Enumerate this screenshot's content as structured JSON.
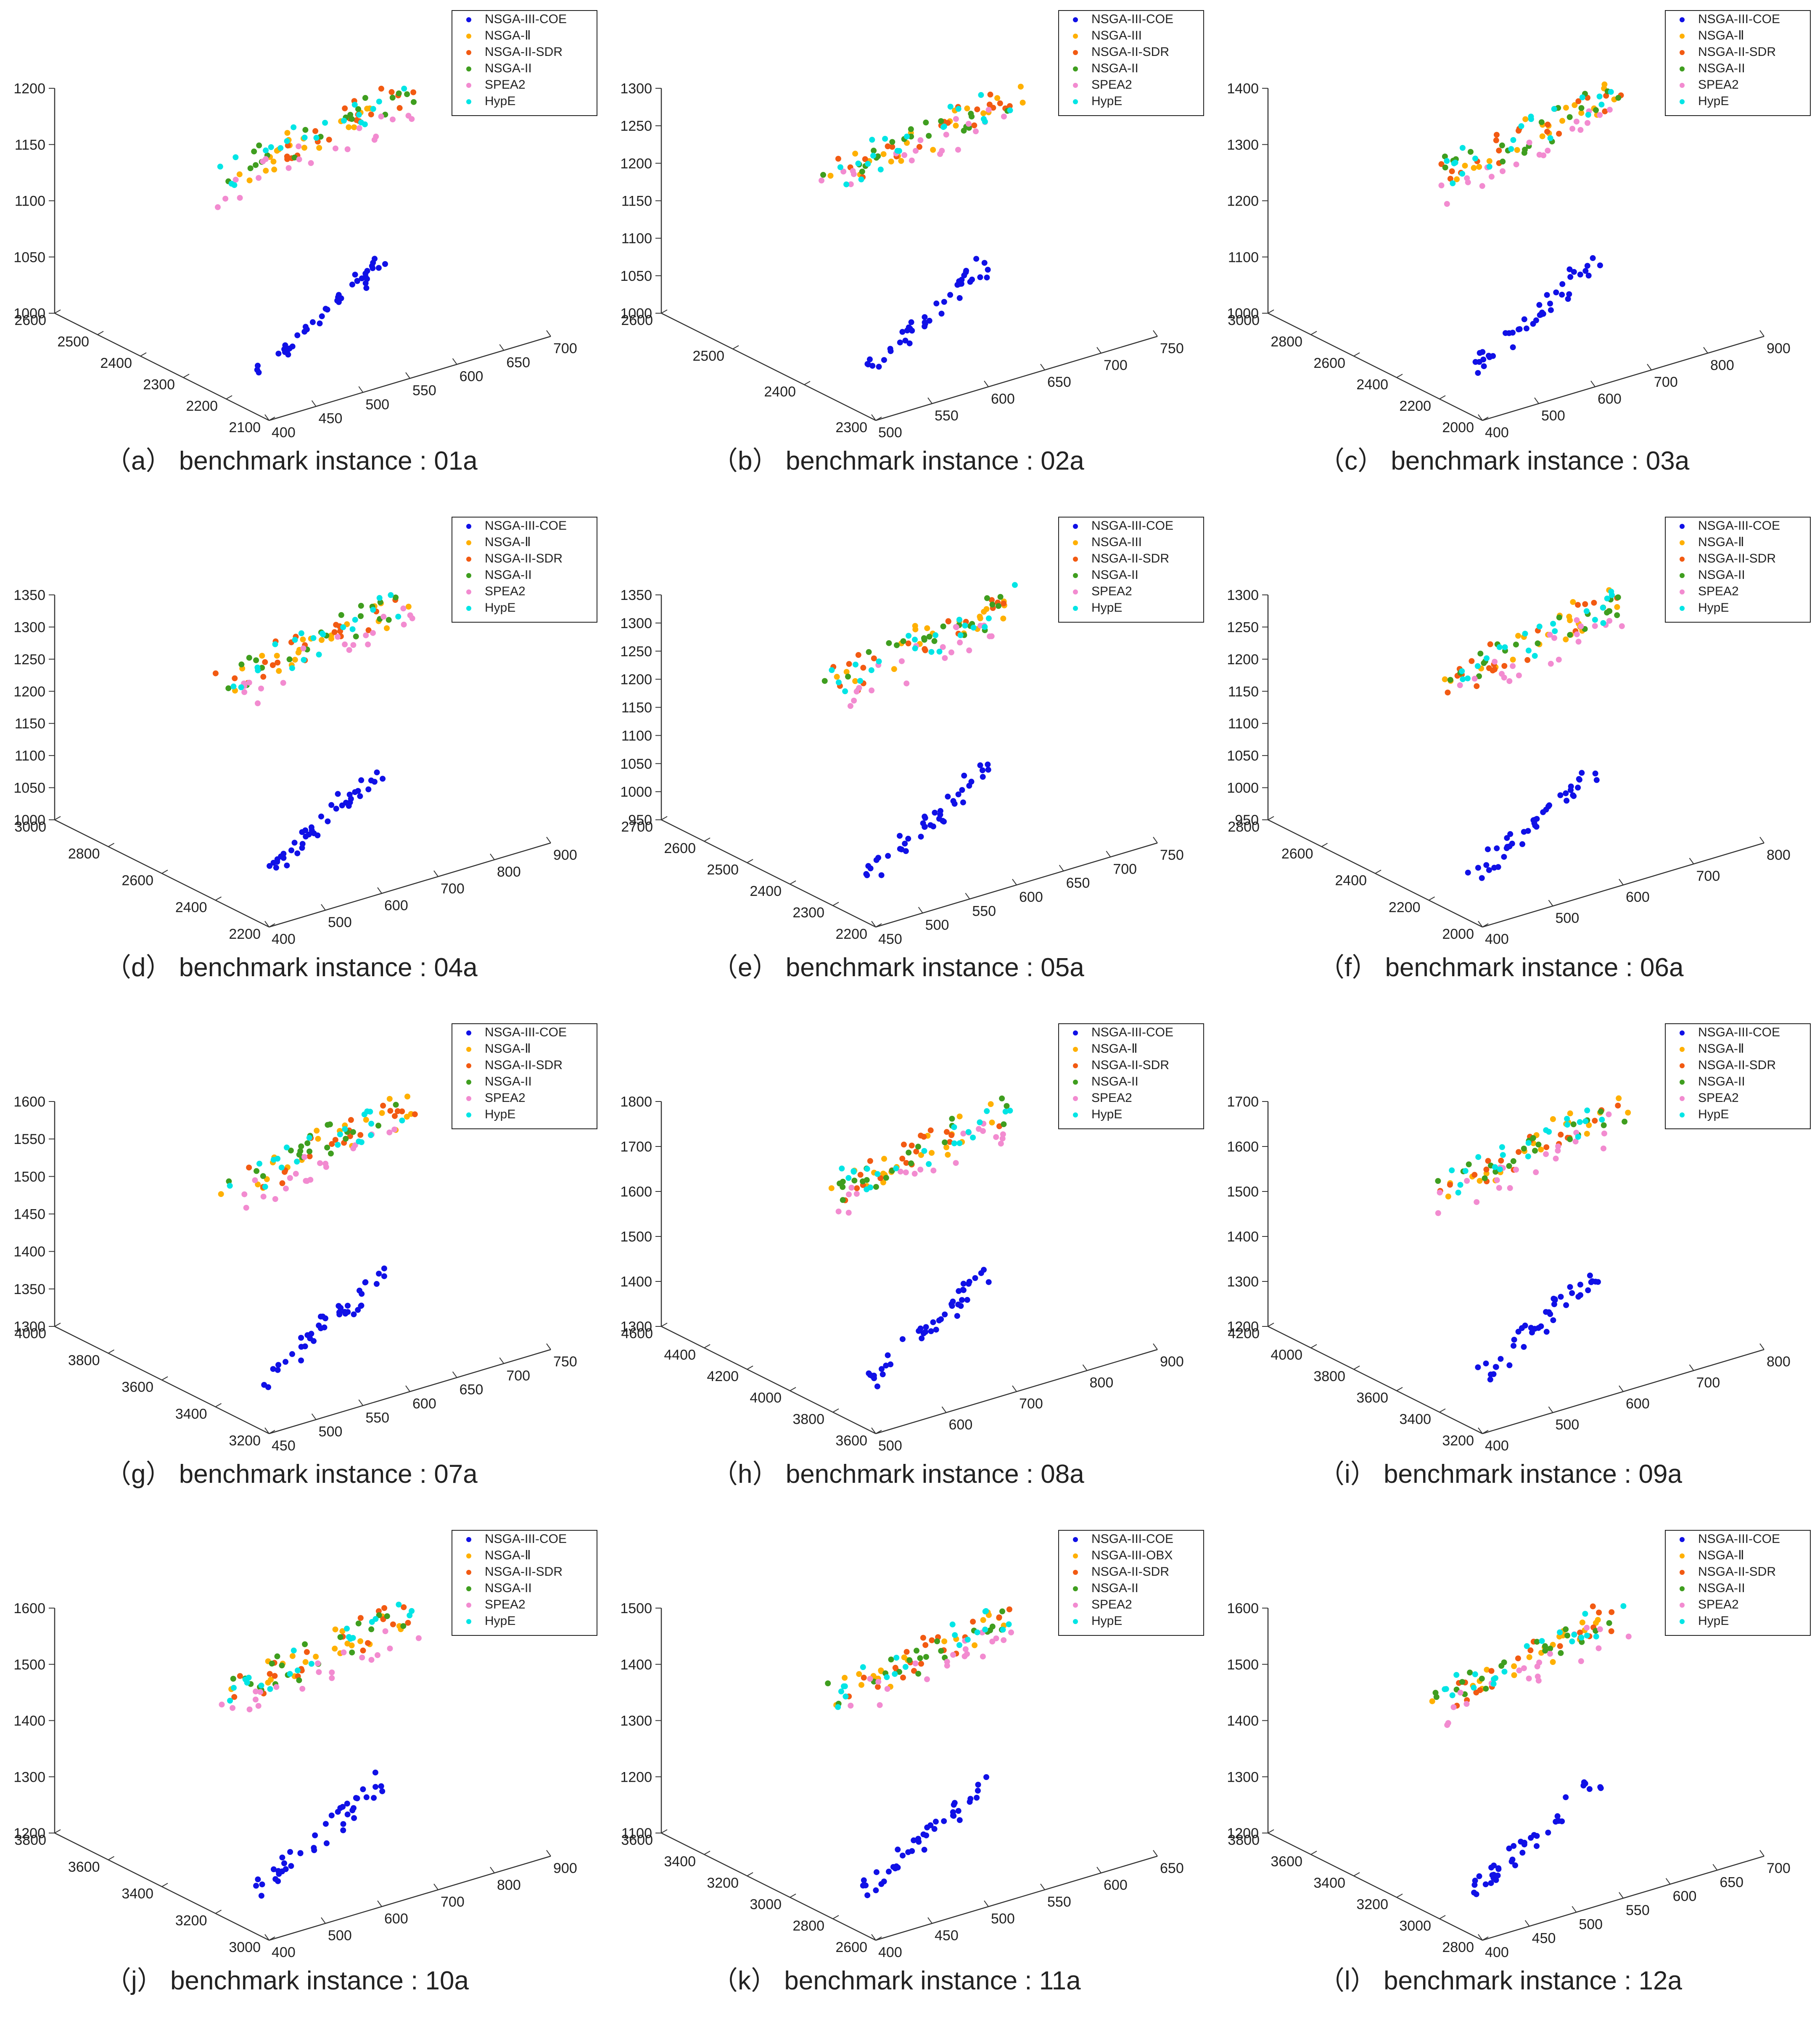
{
  "figure": {
    "series_colors": {
      "NSGA-III-COE": "#1010e6",
      "NSGA-Ⅱ": "#ffb000",
      "NSGA-III": "#ffb000",
      "NSGA-III-OBX": "#ffb000",
      "NSGA-II-SDR": "#f25a12",
      "NSGA-II": "#3f9e1f",
      "SPEA2": "#f28bd0",
      "HypE": "#00e5e5"
    }
  },
  "chart_data": [
    {
      "type": "scatter",
      "caption": "（a）  benchmark instance : 01a",
      "legend": [
        "NSGA-III-COE",
        "NSGA-Ⅱ",
        "NSGA-II-SDR",
        "NSGA-II",
        "SPEA2",
        "HypE"
      ],
      "zticks": [
        "1200",
        "1150",
        "1100",
        "1050",
        "1000"
      ],
      "yticks": [
        "2600",
        "2500",
        "2400",
        "2300",
        "2200",
        "2100"
      ],
      "xticks": [
        "400",
        "450",
        "500",
        "550",
        "600",
        "650",
        "700"
      ],
      "cluster_low": {
        "x": [
          400,
          700
        ],
        "z": [
          1000,
          1050
        ]
      },
      "cluster_high": {
        "x": [
          400,
          700
        ],
        "z": [
          1100,
          1200
        ]
      }
    },
    {
      "type": "scatter",
      "caption": "（b）  benchmark instance : 02a",
      "legend": [
        "NSGA-III-COE",
        "NSGA-III",
        "NSGA-II-SDR",
        "NSGA-II",
        "SPEA2",
        "HypE"
      ],
      "zticks": [
        "1300",
        "1250",
        "1200",
        "1150",
        "1100",
        "1050",
        "1000"
      ],
      "yticks": [
        "2600",
        "2500",
        "2400",
        "2300"
      ],
      "xticks": [
        "500",
        "550",
        "600",
        "650",
        "700",
        "750"
      ],
      "cluster_low": {
        "x": [
          500,
          750
        ],
        "z": [
          1000,
          1030
        ]
      },
      "cluster_high": {
        "x": [
          500,
          750
        ],
        "z": [
          1170,
          1300
        ]
      }
    },
    {
      "type": "scatter",
      "caption": "（c）  benchmark instance : 03a",
      "legend": [
        "NSGA-III-COE",
        "NSGA-Ⅱ",
        "NSGA-II-SDR",
        "NSGA-II",
        "SPEA2",
        "HypE"
      ],
      "zticks": [
        "1400",
        "1300",
        "1200",
        "1100",
        "1000"
      ],
      "yticks": [
        "3000",
        "2800",
        "2600",
        "2400",
        "2200",
        "2000"
      ],
      "xticks": [
        "400",
        "500",
        "600",
        "700",
        "800",
        "900"
      ],
      "cluster_low": {
        "x": [
          400,
          900
        ],
        "z": [
          1000,
          1030
        ]
      },
      "cluster_high": {
        "x": [
          400,
          900
        ],
        "z": [
          1200,
          1400
        ]
      }
    },
    {
      "type": "scatter",
      "caption": "（d）  benchmark instance : 04a",
      "legend": [
        "NSGA-III-COE",
        "NSGA-Ⅱ",
        "NSGA-II-SDR",
        "NSGA-II",
        "SPEA2",
        "HypE"
      ],
      "zticks": [
        "1350",
        "1300",
        "1250",
        "1200",
        "1150",
        "1100",
        "1050",
        "1000"
      ],
      "yticks": [
        "3000",
        "2800",
        "2600",
        "2400",
        "2200"
      ],
      "xticks": [
        "400",
        "500",
        "600",
        "700",
        "800",
        "900"
      ],
      "cluster_low": {
        "x": [
          400,
          900
        ],
        "z": [
          1000,
          1030
        ]
      },
      "cluster_high": {
        "x": [
          400,
          900
        ],
        "z": [
          1130,
          1330
        ]
      }
    },
    {
      "type": "scatter",
      "caption": "（e）  benchmark instance : 05a",
      "legend": [
        "NSGA-III-COE",
        "NSGA-III",
        "NSGA-II-SDR",
        "NSGA-II",
        "SPEA2",
        "HypE"
      ],
      "zticks": [
        "1350",
        "1300",
        "1250",
        "1200",
        "1150",
        "1100",
        "1050",
        "1000",
        "950"
      ],
      "yticks": [
        "2700",
        "2600",
        "2500",
        "2400",
        "2300",
        "2200"
      ],
      "xticks": [
        "450",
        "500",
        "550",
        "600",
        "650",
        "700",
        "750"
      ],
      "cluster_low": {
        "x": [
          450,
          750
        ],
        "z": [
          950,
          980
        ]
      },
      "cluster_high": {
        "x": [
          450,
          750
        ],
        "z": [
          1180,
          1340
        ]
      }
    },
    {
      "type": "scatter",
      "caption": "（f）  benchmark instance : 06a",
      "legend": [
        "NSGA-III-COE",
        "NSGA-Ⅱ",
        "NSGA-II-SDR",
        "NSGA-II",
        "SPEA2",
        "HypE"
      ],
      "zticks": [
        "1300",
        "1250",
        "1200",
        "1150",
        "1100",
        "1050",
        "1000",
        "950"
      ],
      "yticks": [
        "2800",
        "2600",
        "2400",
        "2200",
        "2000"
      ],
      "xticks": [
        "400",
        "500",
        "600",
        "700",
        "800"
      ],
      "cluster_low": {
        "x": [
          400,
          800
        ],
        "z": [
          950,
          1050
        ]
      },
      "cluster_high": {
        "x": [
          400,
          800
        ],
        "z": [
          1130,
          1310
        ]
      }
    },
    {
      "type": "scatter",
      "caption": "（g）  benchmark instance : 07a",
      "legend": [
        "NSGA-III-COE",
        "NSGA-Ⅱ",
        "NSGA-II-SDR",
        "NSGA-II",
        "SPEA2",
        "HypE"
      ],
      "zticks": [
        "1600",
        "1550",
        "1500",
        "1450",
        "1400",
        "1350",
        "1300"
      ],
      "yticks": [
        "4000",
        "3800",
        "3600",
        "3400",
        "3200"
      ],
      "xticks": [
        "450",
        "500",
        "550",
        "600",
        "650",
        "700",
        "750"
      ],
      "cluster_low": {
        "x": [
          450,
          750
        ],
        "z": [
          1300,
          1330
        ]
      },
      "cluster_high": {
        "x": [
          450,
          750
        ],
        "z": [
          1440,
          1620
        ]
      }
    },
    {
      "type": "scatter",
      "caption": "（h）  benchmark instance : 08a",
      "legend": [
        "NSGA-III-COE",
        "NSGA-Ⅱ",
        "NSGA-II-SDR",
        "NSGA-II",
        "SPEA2",
        "HypE"
      ],
      "zticks": [
        "1800",
        "1700",
        "1600",
        "1500",
        "1400",
        "1300"
      ],
      "yticks": [
        "4600",
        "4400",
        "4200",
        "4000",
        "3800",
        "3600"
      ],
      "xticks": [
        "500",
        "600",
        "700",
        "800",
        "900"
      ],
      "cluster_low": {
        "x": [
          500,
          900
        ],
        "z": [
          1300,
          1330
        ]
      },
      "cluster_high": {
        "x": [
          500,
          900
        ],
        "z": [
          1600,
          1800
        ]
      }
    },
    {
      "type": "scatter",
      "caption": "（i）  benchmark instance : 09a",
      "legend": [
        "NSGA-III-COE",
        "NSGA-Ⅱ",
        "NSGA-II-SDR",
        "NSGA-II",
        "SPEA2",
        "HypE"
      ],
      "zticks": [
        "1700",
        "1600",
        "1500",
        "1400",
        "1300",
        "1200"
      ],
      "yticks": [
        "4200",
        "4000",
        "3800",
        "3600",
        "3400",
        "3200"
      ],
      "xticks": [
        "400",
        "500",
        "600",
        "700",
        "800"
      ],
      "cluster_low": {
        "x": [
          400,
          800
        ],
        "z": [
          1200,
          1270
        ]
      },
      "cluster_high": {
        "x": [
          400,
          800
        ],
        "z": [
          1500,
          1680
        ]
      }
    },
    {
      "type": "scatter",
      "caption": "（j）  benchmark instance : 10a",
      "legend": [
        "NSGA-III-COE",
        "NSGA-Ⅱ",
        "NSGA-II-SDR",
        "NSGA-II",
        "SPEA2",
        "HypE"
      ],
      "zticks": [
        "1600",
        "1500",
        "1400",
        "1300",
        "1200"
      ],
      "yticks": [
        "3800",
        "3600",
        "3400",
        "3200",
        "3000"
      ],
      "xticks": [
        "400",
        "500",
        "600",
        "700",
        "800",
        "900"
      ],
      "cluster_low": {
        "x": [
          400,
          900
        ],
        "z": [
          1200,
          1230
        ]
      },
      "cluster_high": {
        "x": [
          400,
          900
        ],
        "z": [
          1370,
          1650
        ]
      }
    },
    {
      "type": "scatter",
      "caption": "（k）  benchmark instance : 11a",
      "legend": [
        "NSGA-III-COE",
        "NSGA-III-OBX",
        "NSGA-II-SDR",
        "NSGA-II",
        "SPEA2",
        "HypE"
      ],
      "zticks": [
        "1500",
        "1400",
        "1300",
        "1200",
        "1100"
      ],
      "yticks": [
        "3600",
        "3400",
        "3200",
        "3000",
        "2800",
        "2600"
      ],
      "xticks": [
        "400",
        "450",
        "500",
        "550",
        "600",
        "650"
      ],
      "cluster_low": {
        "x": [
          400,
          650
        ],
        "z": [
          1100,
          1130
        ]
      },
      "cluster_high": {
        "x": [
          400,
          650
        ],
        "z": [
          1360,
          1500
        ]
      }
    },
    {
      "type": "scatter",
      "caption": "（l）  benchmark instance : 12a",
      "legend": [
        "NSGA-III-COE",
        "NSGA-Ⅱ",
        "NSGA-II-SDR",
        "NSGA-II",
        "SPEA2",
        "HypE"
      ],
      "zticks": [
        "1600",
        "1500",
        "1400",
        "1300",
        "1200"
      ],
      "yticks": [
        "3800",
        "3600",
        "3400",
        "3200",
        "3000",
        "2800"
      ],
      "xticks": [
        "400",
        "450",
        "500",
        "550",
        "600",
        "650",
        "700"
      ],
      "cluster_low": {
        "x": [
          400,
          700
        ],
        "z": [
          1200,
          1220
        ]
      },
      "cluster_high": {
        "x": [
          400,
          700
        ],
        "z": [
          1400,
          1570
        ]
      }
    }
  ]
}
